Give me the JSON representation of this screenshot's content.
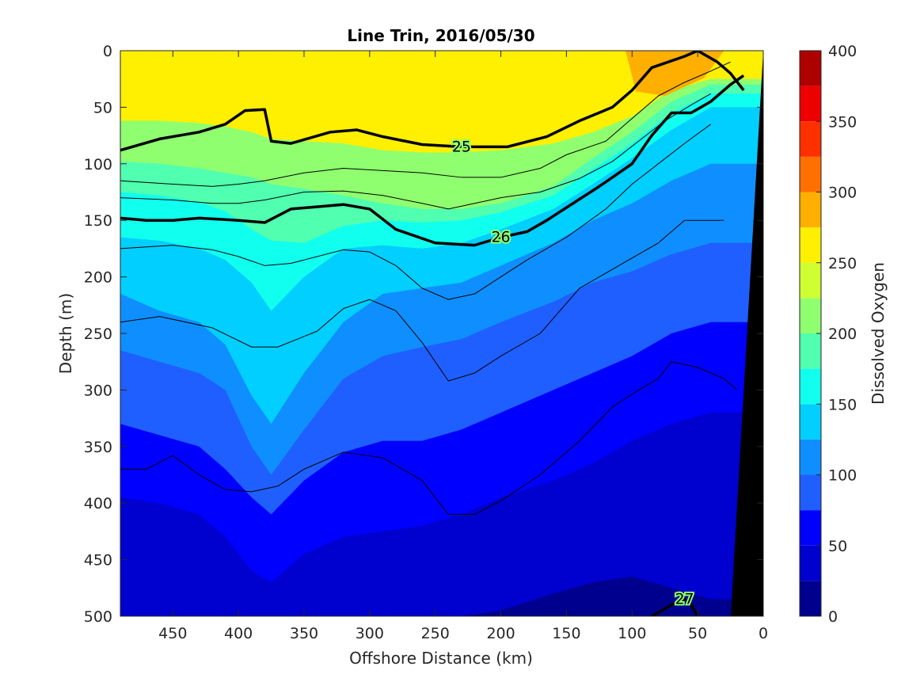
{
  "chart_data": {
    "type": "contour",
    "title": "Line Trin, 2016/05/30",
    "xlabel": "Offshore Distance (km)",
    "ylabel": "Depth (m)",
    "xlim": [
      490,
      0
    ],
    "ylim": [
      0,
      500
    ],
    "x_reversed": true,
    "y_reversed": true,
    "x_ticks": [
      450,
      400,
      350,
      300,
      250,
      200,
      150,
      100,
      50,
      0
    ],
    "y_ticks": [
      0,
      50,
      100,
      150,
      200,
      250,
      300,
      350,
      400,
      450,
      500
    ],
    "colorbar": {
      "label": "Dissolved Oxygen",
      "range": [
        0,
        400
      ],
      "ticks": [
        0,
        50,
        100,
        150,
        200,
        250,
        300,
        350,
        400
      ],
      "levels": [
        0,
        25,
        50,
        75,
        100,
        125,
        150,
        175,
        200,
        225,
        250,
        275,
        300,
        325,
        350,
        375,
        400
      ],
      "colors": [
        "#00008f",
        "#0000cf",
        "#0000ff",
        "#1f5fff",
        "#0f8fff",
        "#00cfff",
        "#10ffef",
        "#50ffaf",
        "#8fff70",
        "#cfff30",
        "#ffef00",
        "#ffaf00",
        "#ff7000",
        "#ff3000",
        "#ef0000",
        "#af0000"
      ]
    },
    "oxygen_fill_bands": [
      {
        "level": 225,
        "depths": [
          62,
          62,
          64,
          67,
          72,
          78,
          80,
          82,
          88,
          90,
          90,
          88,
          82,
          72,
          58,
          35,
          25
        ]
      },
      {
        "level": 200,
        "depths": [
          98,
          100,
          104,
          108,
          112,
          118,
          122,
          128,
          135,
          140,
          140,
          135,
          120,
          95,
          72,
          45,
          30
        ]
      },
      {
        "level": 175,
        "depths": [
          125,
          128,
          134,
          142,
          158,
          168,
          170,
          155,
          150,
          152,
          150,
          143,
          128,
          105,
          82,
          55,
          38
        ]
      },
      {
        "level": 150,
        "depths": [
          165,
          168,
          175,
          185,
          205,
          230,
          200,
          175,
          172,
          175,
          170,
          158,
          140,
          118,
          95,
          70,
          50
        ]
      },
      {
        "level": 125,
        "depths": [
          215,
          230,
          240,
          260,
          305,
          330,
          285,
          240,
          215,
          210,
          205,
          190,
          170,
          150,
          135,
          115,
          100
        ]
      },
      {
        "level": 100,
        "depths": [
          265,
          275,
          285,
          300,
          350,
          375,
          335,
          290,
          270,
          262,
          255,
          240,
          222,
          205,
          195,
          180,
          170
        ]
      },
      {
        "level": 75,
        "depths": [
          330,
          340,
          350,
          370,
          395,
          410,
          380,
          355,
          345,
          345,
          335,
          320,
          300,
          285,
          270,
          250,
          240
        ]
      },
      {
        "level": 50,
        "depths": [
          395,
          400,
          410,
          430,
          460,
          470,
          445,
          430,
          425,
          420,
          410,
          395,
          380,
          365,
          345,
          330,
          320
        ]
      },
      {
        "level": 25,
        "depths": [
          500,
          500,
          500,
          500,
          500,
          500,
          500,
          500,
          500,
          500,
          500,
          495,
          480,
          470,
          465,
          475,
          485
        ]
      }
    ],
    "band_distances": [
      490,
      460,
      430,
      410,
      390,
      375,
      350,
      320,
      290,
      260,
      230,
      200,
      160,
      130,
      100,
      70,
      40
    ],
    "surface_maximum": {
      "level": 275,
      "distance_range": [
        105,
        45
      ],
      "depth_max": 40
    },
    "density_contours": [
      {
        "label": "25",
        "thick": true,
        "distance": [
          490,
          460,
          430,
          410,
          395,
          380,
          375,
          360,
          330,
          310,
          290,
          260,
          230,
          195,
          165,
          140,
          115,
          100,
          85,
          60,
          50,
          35,
          25,
          15
        ],
        "depth": [
          88,
          78,
          72,
          65,
          53,
          52,
          80,
          82,
          72,
          70,
          76,
          83,
          85,
          85,
          76,
          62,
          50,
          35,
          15,
          5,
          0,
          10,
          20,
          35
        ]
      },
      {
        "label": "26",
        "thick": true,
        "distance": [
          490,
          470,
          450,
          430,
          400,
          380,
          360,
          320,
          300,
          280,
          250,
          220,
          200,
          180,
          165,
          145,
          125,
          100,
          85,
          70,
          55,
          40,
          25,
          15
        ],
        "depth": [
          148,
          150,
          150,
          148,
          150,
          152,
          140,
          136,
          140,
          158,
          170,
          172,
          165,
          160,
          150,
          135,
          120,
          100,
          75,
          55,
          55,
          45,
          30,
          22
        ]
      },
      {
        "label": "27",
        "thick": true,
        "distance": [
          85,
          70,
          60,
          55,
          50
        ],
        "depth": [
          500,
          490,
          485,
          490,
          500
        ]
      },
      {
        "thick": false,
        "distance": [
          490,
          450,
          420,
          400,
          380,
          350,
          320,
          290,
          260,
          230,
          200,
          170,
          150,
          120,
          100,
          80,
          60,
          40,
          25
        ],
        "depth": [
          115,
          118,
          120,
          118,
          115,
          108,
          104,
          106,
          108,
          112,
          112,
          104,
          92,
          80,
          60,
          40,
          28,
          18,
          10
        ]
      },
      {
        "thick": false,
        "distance": [
          490,
          450,
          420,
          400,
          380,
          350,
          320,
          290,
          260,
          240,
          220,
          200,
          170,
          140,
          115,
          95,
          75,
          55,
          40
        ],
        "depth": [
          130,
          132,
          135,
          135,
          132,
          125,
          124,
          128,
          135,
          140,
          135,
          130,
          125,
          113,
          98,
          80,
          62,
          48,
          38
        ]
      },
      {
        "thick": false,
        "distance": [
          490,
          450,
          420,
          400,
          380,
          360,
          320,
          300,
          280,
          260,
          240,
          220,
          200,
          180,
          150,
          120,
          100,
          80,
          60,
          40
        ],
        "depth": [
          175,
          172,
          176,
          182,
          190,
          188,
          176,
          178,
          190,
          210,
          220,
          215,
          200,
          185,
          165,
          140,
          118,
          100,
          82,
          65
        ]
      },
      {
        "thick": false,
        "distance": [
          490,
          460,
          420,
          390,
          370,
          340,
          320,
          300,
          280,
          260,
          240,
          220,
          200,
          170,
          140,
          110,
          80,
          60,
          40,
          30
        ],
        "depth": [
          240,
          235,
          245,
          262,
          262,
          248,
          228,
          220,
          230,
          258,
          292,
          285,
          270,
          250,
          210,
          190,
          170,
          150,
          150,
          150
        ]
      },
      {
        "thick": false,
        "distance": [
          490,
          470,
          450,
          430,
          410,
          390,
          370,
          350,
          320,
          290,
          260,
          240,
          220,
          200,
          170,
          140,
          115,
          95,
          80,
          70,
          50,
          30,
          20
        ],
        "depth": [
          370,
          370,
          358,
          375,
          388,
          390,
          385,
          370,
          355,
          360,
          380,
          410,
          410,
          398,
          375,
          345,
          315,
          300,
          290,
          275,
          280,
          290,
          300
        ]
      }
    ],
    "land_mask": {
      "distance_top": 0,
      "distance_bottom": 25,
      "color": "#000000"
    }
  }
}
